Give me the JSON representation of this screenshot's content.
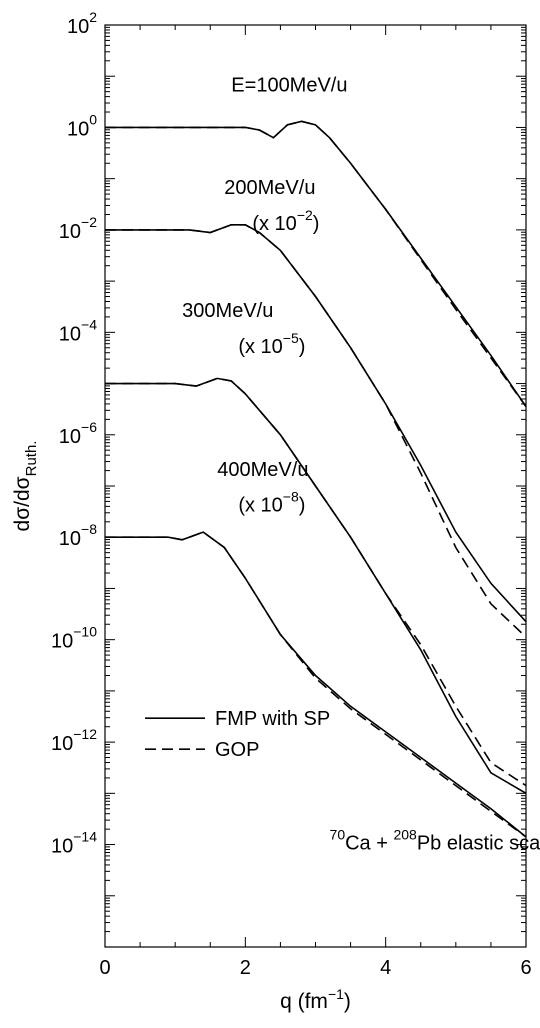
{
  "chart_data": {
    "type": "line",
    "xlabel": "q (fm",
    "xlabel_sup": "−1",
    "xlabel_end": ")",
    "ylabel": "dσ/dσ",
    "ylabel_sub": "Ruth.",
    "xlim": [
      0,
      6
    ],
    "ylim_log10": [
      -16,
      2
    ],
    "yscale": "log",
    "x_ticks": [
      0,
      2,
      4,
      6
    ],
    "x_tick_labels": [
      "0",
      "2",
      "4",
      "6"
    ],
    "y_ticks_exp": [
      2,
      0,
      -2,
      -4,
      -6,
      -8,
      -10,
      -12,
      -14
    ],
    "y_tick_base": "10",
    "y_tick_exps": [
      "2",
      "0",
      "−2",
      "−4",
      "−6",
      "−8",
      "−10",
      "−12",
      "−14"
    ],
    "legend_placement": "lower-left",
    "legend": [
      {
        "label": "FMP with SP",
        "style": "solid"
      },
      {
        "label": "GOP",
        "style": "dashed"
      }
    ],
    "annotations": [
      {
        "id": "e100",
        "text": "E=100MeV/u",
        "at": [
          1.8,
          0.7
        ]
      },
      {
        "id": "e200",
        "text": "200MeV/u",
        "at": [
          1.7,
          -1.3
        ]
      },
      {
        "id": "s200",
        "text_pre": "(x 10",
        "sup": "−2",
        "text_post": ")",
        "at": [
          2.1,
          -2.0
        ]
      },
      {
        "id": "e300",
        "text": "300MeV/u",
        "at": [
          1.1,
          -3.7
        ]
      },
      {
        "id": "s300",
        "text_pre": "(x 10",
        "sup": "−5",
        "text_post": ")",
        "at": [
          1.9,
          -4.4
        ]
      },
      {
        "id": "e400",
        "text": "400MeV/u",
        "at": [
          1.6,
          -6.8
        ]
      },
      {
        "id": "s400",
        "text_pre": "(x 10",
        "sup": "−8",
        "text_post": ")",
        "at": [
          1.9,
          -7.5
        ]
      },
      {
        "id": "reaction",
        "sup1": "70",
        "part1": "Ca + ",
        "sup2": "208",
        "part2": "Pb elastic scattering",
        "at": [
          3.2,
          -14.1
        ]
      }
    ],
    "series": [
      {
        "label": "100MeV/u",
        "x": [
          0,
          0.5,
          1.0,
          1.5,
          2.0,
          2.2,
          2.4,
          2.6,
          2.8,
          3.0,
          3.2,
          3.5,
          4.0,
          4.5,
          5.0,
          5.5,
          6.0
        ],
        "fmp": [
          0,
          0,
          0,
          0.0,
          0.0,
          -0.05,
          -0.2,
          0.05,
          0.12,
          0.05,
          -0.2,
          -0.7,
          -1.6,
          -2.55,
          -3.5,
          -4.45,
          -5.45
        ],
        "gop": [
          0,
          0,
          0,
          0.0,
          0.0,
          -0.05,
          -0.2,
          0.05,
          0.12,
          0.05,
          -0.2,
          -0.7,
          -1.6,
          -2.58,
          -3.55,
          -4.5,
          -5.45
        ]
      },
      {
        "label": "200MeV/u",
        "x": [
          0,
          0.5,
          1.0,
          1.2,
          1.5,
          1.8,
          2.0,
          2.2,
          2.5,
          3.0,
          3.5,
          4.0,
          4.5,
          5.0,
          5.5,
          6.0
        ],
        "fmp": [
          -2,
          -2,
          -2,
          -2.0,
          -2.05,
          -1.9,
          -1.9,
          -2.05,
          -2.4,
          -3.3,
          -4.3,
          -5.4,
          -6.6,
          -7.9,
          -8.9,
          -9.65
        ],
        "gop": [
          -2,
          -2,
          -2,
          -2.0,
          -2.05,
          -1.9,
          -1.9,
          -2.05,
          -2.4,
          -3.3,
          -4.3,
          -5.4,
          -6.75,
          -8.2,
          -9.3,
          -9.95
        ]
      },
      {
        "label": "300MeV/u",
        "x": [
          0,
          0.5,
          1.0,
          1.3,
          1.6,
          1.8,
          2.0,
          2.5,
          3.0,
          3.5,
          4.0,
          4.5,
          5.0,
          5.5,
          6.0
        ],
        "fmp": [
          -5,
          -5,
          -5,
          -5.05,
          -4.9,
          -4.95,
          -5.2,
          -6.0,
          -7.0,
          -8.0,
          -9.1,
          -10.2,
          -11.5,
          -12.6,
          -13.0
        ],
        "gop": [
          -5,
          -5,
          -5,
          -5.05,
          -4.9,
          -4.95,
          -5.2,
          -6.0,
          -7.0,
          -8.0,
          -9.1,
          -10.1,
          -11.3,
          -12.4,
          -12.85
        ]
      },
      {
        "label": "400MeV/u",
        "x": [
          0,
          0.5,
          0.9,
          1.1,
          1.4,
          1.7,
          2.0,
          2.5,
          3.0,
          3.5,
          4.0,
          4.5,
          5.0,
          5.5,
          6.0
        ],
        "fmp": [
          -8,
          -8,
          -8.0,
          -8.05,
          -7.9,
          -8.2,
          -8.8,
          -9.9,
          -10.7,
          -11.3,
          -11.8,
          -12.3,
          -12.8,
          -13.3,
          -13.85
        ],
        "gop": [
          -8,
          -8,
          -8.0,
          -8.05,
          -7.9,
          -8.2,
          -8.8,
          -9.9,
          -10.75,
          -11.35,
          -11.85,
          -12.35,
          -12.85,
          -13.35,
          -13.85
        ]
      }
    ]
  }
}
